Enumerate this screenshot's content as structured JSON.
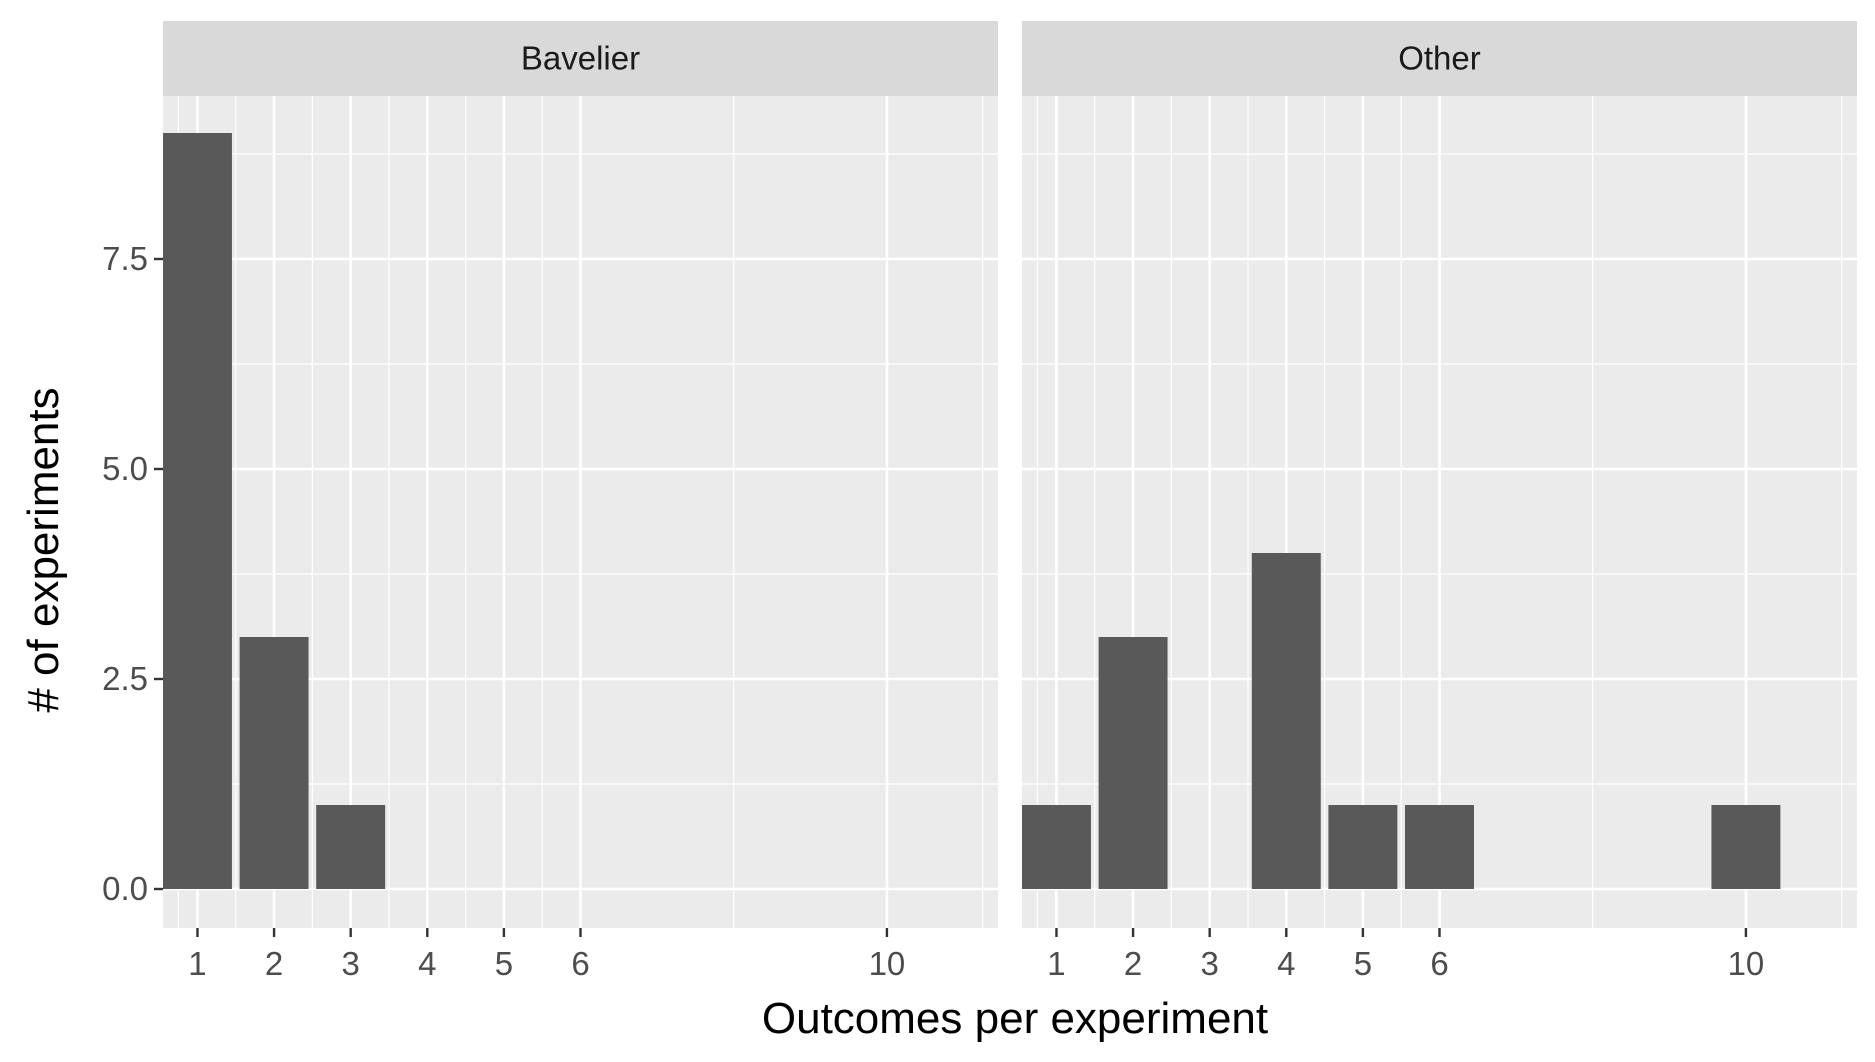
{
  "chart_data": {
    "type": "bar",
    "xlabel": "Outcomes per experiment",
    "ylabel": "# of experiments",
    "x_ticks": [
      1,
      2,
      3,
      4,
      5,
      6,
      10
    ],
    "x_tick_labels": [
      "1",
      "2",
      "3",
      "4",
      "5",
      "6",
      "10"
    ],
    "y_ticks": [
      0,
      2.5,
      5,
      7.5
    ],
    "y_tick_labels": [
      "0.0",
      "2.5",
      "5.0",
      "7.5"
    ],
    "ylim": [
      -0.45,
      9.45
    ],
    "grid": true,
    "bar_color": "#595959",
    "panel_background": "#ebebeb",
    "strip_background": "#d9d9d9",
    "facets": [
      {
        "label": "Bavelier",
        "x": [
          1,
          2,
          3
        ],
        "values": [
          9,
          3,
          1
        ]
      },
      {
        "label": "Other",
        "x": [
          1,
          2,
          4,
          5,
          6,
          10
        ],
        "values": [
          1,
          3,
          4,
          1,
          1,
          1
        ]
      }
    ]
  }
}
